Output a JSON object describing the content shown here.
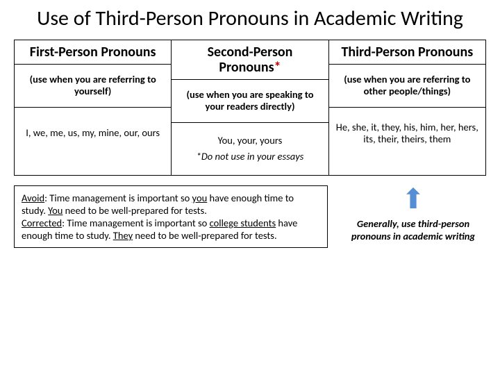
{
  "title": "Use of Third-Person Pronouns in Academic Writing",
  "columns": [
    {
      "header": "First-Person Pronouns",
      "sub": "(use when you are referring to yourself)",
      "examples": "I, we, me, us, my, mine, our, ours",
      "note": ""
    },
    {
      "header_pre": "Second-Person Pronouns",
      "star": "*",
      "sub": "(use when you are speaking to your readers directly)",
      "examples": "You, your, yours",
      "note": "*Do not use in your essays"
    },
    {
      "header": "Third-Person Pronouns",
      "sub": "(use when you are referring to other people/things)",
      "examples": "He, she, it, they, his, him, her, hers, its, their, theirs, them",
      "note": ""
    }
  ],
  "avoid_label": "Avoid",
  "avoid_pre": ": Time management is important so ",
  "avoid_u1": "you",
  "avoid_mid": " have enough time to study. ",
  "avoid_u2": "You",
  "avoid_post": " need to be well-prepared for tests.",
  "corr_label": "Corrected",
  "corr_pre": ": Time management is important so ",
  "corr_u1": "college students",
  "corr_mid": " have enough time to study.  ",
  "corr_u2": "They",
  "corr_post": " need to be well-prepared for tests.",
  "advice": "Generally, use third-person pronouns in academic writing"
}
